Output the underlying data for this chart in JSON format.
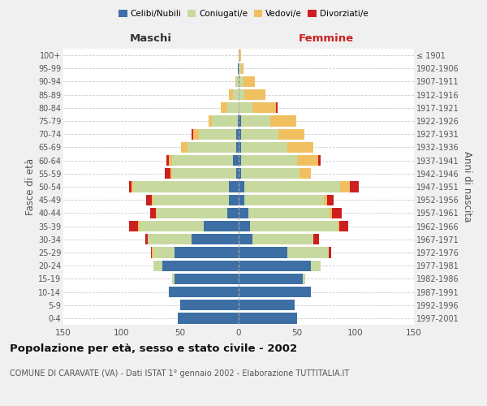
{
  "age_groups": [
    "0-4",
    "5-9",
    "10-14",
    "15-19",
    "20-24",
    "25-29",
    "30-34",
    "35-39",
    "40-44",
    "45-49",
    "50-54",
    "55-59",
    "60-64",
    "65-69",
    "70-74",
    "75-79",
    "80-84",
    "85-89",
    "90-94",
    "95-99",
    "100+"
  ],
  "birth_years": [
    "1997-2001",
    "1992-1996",
    "1987-1991",
    "1982-1986",
    "1977-1981",
    "1972-1976",
    "1967-1971",
    "1962-1966",
    "1957-1961",
    "1952-1956",
    "1947-1951",
    "1942-1946",
    "1937-1941",
    "1932-1936",
    "1927-1931",
    "1922-1926",
    "1917-1921",
    "1912-1916",
    "1907-1911",
    "1902-1906",
    "≤ 1901"
  ],
  "male": {
    "celibi": [
      52,
      50,
      60,
      55,
      65,
      55,
      40,
      30,
      10,
      8,
      8,
      2,
      5,
      2,
      2,
      1,
      0,
      0,
      0,
      1,
      0
    ],
    "coniugati": [
      0,
      0,
      0,
      2,
      8,
      18,
      38,
      55,
      60,
      65,
      82,
      55,
      52,
      42,
      32,
      22,
      10,
      5,
      2,
      0,
      0
    ],
    "vedovi": [
      0,
      0,
      0,
      0,
      0,
      1,
      0,
      1,
      1,
      1,
      2,
      1,
      3,
      5,
      5,
      3,
      5,
      3,
      1,
      0,
      0
    ],
    "divorziati": [
      0,
      0,
      0,
      0,
      0,
      1,
      2,
      8,
      5,
      5,
      2,
      5,
      2,
      0,
      1,
      0,
      0,
      0,
      0,
      0,
      0
    ]
  },
  "female": {
    "nubili": [
      50,
      48,
      62,
      55,
      62,
      42,
      12,
      10,
      8,
      5,
      5,
      2,
      2,
      2,
      2,
      2,
      0,
      0,
      1,
      0,
      0
    ],
    "coniugate": [
      0,
      0,
      0,
      2,
      8,
      35,
      52,
      75,
      70,
      68,
      82,
      50,
      48,
      40,
      32,
      25,
      12,
      5,
      3,
      2,
      0
    ],
    "vedove": [
      0,
      0,
      0,
      0,
      0,
      0,
      0,
      1,
      2,
      3,
      8,
      10,
      18,
      22,
      22,
      22,
      20,
      18,
      10,
      2,
      2
    ],
    "divorziate": [
      0,
      0,
      0,
      0,
      0,
      2,
      5,
      8,
      8,
      5,
      8,
      0,
      2,
      0,
      0,
      0,
      1,
      0,
      0,
      0,
      0
    ]
  },
  "colors": {
    "celibi": "#3d6fa5",
    "coniugati": "#c8d9a0",
    "vedovi": "#f0c060",
    "divorziati": "#cc2020"
  },
  "xlim": 150,
  "title": "Popolazione per età, sesso e stato civile - 2002",
  "subtitle": "COMUNE DI CARAVATE (VA) - Dati ISTAT 1° gennaio 2002 - Elaborazione TUTTITALIA.IT",
  "ylabel_left": "Fasce di età",
  "ylabel_right": "Anni di nascita",
  "xlabel_left": "Maschi",
  "xlabel_right": "Femmine",
  "bg_color": "#f0f0f0",
  "plot_bg": "#ffffff"
}
